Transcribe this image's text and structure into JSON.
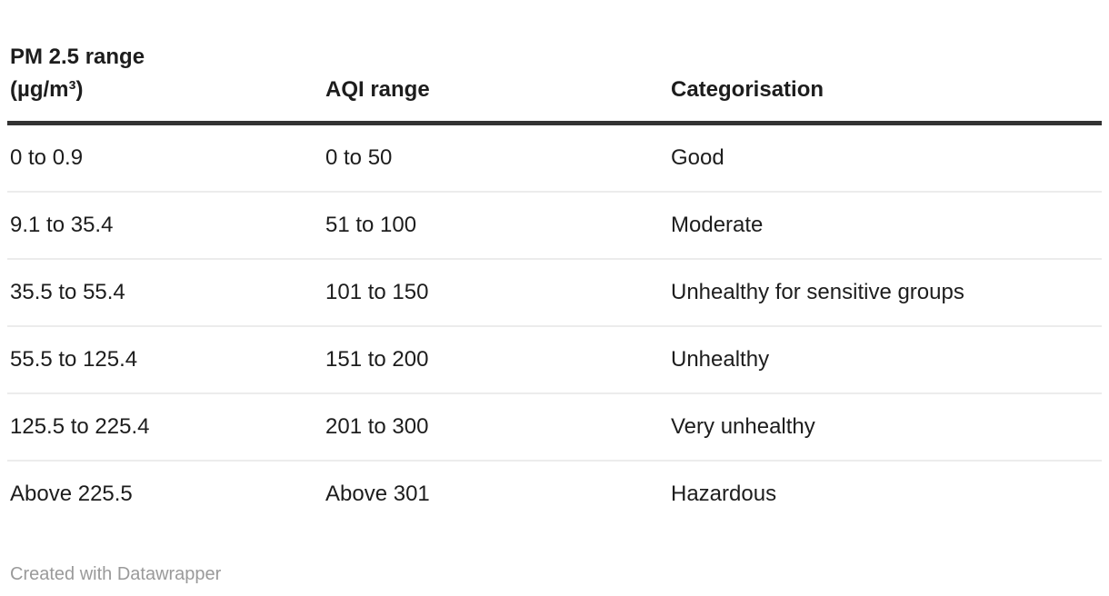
{
  "page": {
    "background": "#ffffff"
  },
  "colors": {
    "text": "#1d1d1d",
    "header_rule": "#333333",
    "row_divider": "#ececec",
    "footer_text": "#9a9a9a"
  },
  "chart_data": {
    "type": "table",
    "title": "",
    "columns": [
      "PM 2.5 range (µg/m³)",
      "AQI range",
      "Categorisation"
    ],
    "rows": [
      [
        "0 to 0.9",
        "0 to 50",
        "Good"
      ],
      [
        "9.1 to 35.4",
        "51 to 100",
        "Moderate"
      ],
      [
        "35.5 to 55.4",
        "101 to 150",
        "Unhealthy for sensitive groups"
      ],
      [
        "55.5 to 125.4",
        "151 to 200",
        "Unhealthy"
      ],
      [
        "125.5 to 225.4",
        "201 to 300",
        "Very unhealthy"
      ],
      [
        "Above 225.5",
        "Above 301",
        "Hazardous"
      ]
    ],
    "layout_hints": {
      "header_rule": "thick dark line under header",
      "row_dividers": "thin light gray lines between rows, none after last row",
      "grid": "horizontal only"
    }
  },
  "table": {
    "columns": [
      {
        "label": "PM 2.5 range\n(µg/m³)"
      },
      {
        "label": "AQI range"
      },
      {
        "label": "Categorisation"
      }
    ],
    "rows": [
      {
        "pm25": "0 to 0.9",
        "aqi": "0 to 50",
        "category": "Good"
      },
      {
        "pm25": "9.1 to 35.4",
        "aqi": "51 to 100",
        "category": "Moderate"
      },
      {
        "pm25": "35.5 to 55.4",
        "aqi": "101 to 150",
        "category": "Unhealthy for sensitive groups"
      },
      {
        "pm25": "55.5 to 125.4",
        "aqi": "151 to 200",
        "category": "Unhealthy"
      },
      {
        "pm25": "125.5 to 225.4",
        "aqi": "201 to 300",
        "category": "Very unhealthy"
      },
      {
        "pm25": "Above 225.5",
        "aqi": "Above 301",
        "category": "Hazardous"
      }
    ]
  },
  "footer": {
    "text": "Created with Datawrapper"
  }
}
